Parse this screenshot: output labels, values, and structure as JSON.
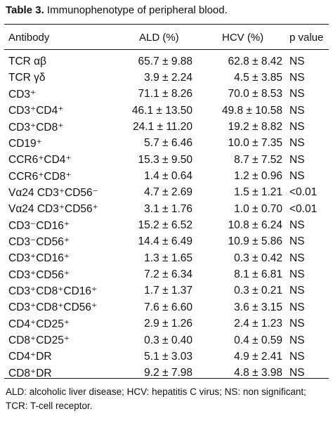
{
  "caption": {
    "label": "Table 3.",
    "title": "Immunophenotype of peripheral blood."
  },
  "header": {
    "antibody": "Antibody",
    "ald": "ALD (%)",
    "hcv": "HCV (%)",
    "p": "p value"
  },
  "rows": [
    {
      "antibody": "TCR αβ",
      "ald": "65.7 ± 9.88",
      "hcv": "62.8 ± 8.42",
      "p": "NS"
    },
    {
      "antibody": "TCR γδ",
      "ald": "3.9 ± 2.24",
      "hcv": "4.5 ± 3.85",
      "p": "NS"
    },
    {
      "antibody": "CD3⁺",
      "ald": "71.1 ± 8.26",
      "hcv": "70.0 ± 8.53",
      "p": "NS"
    },
    {
      "antibody": "CD3⁺CD4⁺",
      "ald": "46.1 ± 13.50",
      "hcv": "49.8 ± 10.58",
      "p": "NS"
    },
    {
      "antibody": "CD3⁺CD8⁺",
      "ald": "24.1 ± 11.20",
      "hcv": "19.2 ± 8.82",
      "p": "NS"
    },
    {
      "antibody": "CD19⁺",
      "ald": "5.7 ± 6.46",
      "hcv": "10.0 ± 7.35",
      "p": "NS"
    },
    {
      "antibody": "CCR6⁺CD4⁺",
      "ald": "15.3 ± 9.50",
      "hcv": "8.7 ± 7.52",
      "p": "NS"
    },
    {
      "antibody": "CCR6⁺CD8⁺",
      "ald": "1.4 ± 0.64",
      "hcv": "1.2 ± 0.96",
      "p": "NS"
    },
    {
      "antibody": "Vα24 CD3⁺CD56⁻",
      "ald": "4.7 ± 2.69",
      "hcv": "1.5 ± 1.21",
      "p": "<0.01"
    },
    {
      "antibody": "Vα24 CD3⁺CD56⁺",
      "ald": "3.1 ± 1.76",
      "hcv": "1.0 ± 0.70",
      "p": "<0.01"
    },
    {
      "antibody": "CD3⁻CD16⁺",
      "ald": "15.2 ± 6.52",
      "hcv": "10.8 ± 6.24",
      "p": "NS"
    },
    {
      "antibody": "CD3⁻CD56⁺",
      "ald": "14.4 ± 6.49",
      "hcv": "10.9 ± 5.86",
      "p": "NS"
    },
    {
      "antibody": "CD3⁺CD16⁺",
      "ald": "1.3 ± 1.65",
      "hcv": "0.3 ± 0.42",
      "p": "NS"
    },
    {
      "antibody": "CD3⁺CD56⁺",
      "ald": "7.2 ± 6.34",
      "hcv": "8.1 ± 6.81",
      "p": "NS"
    },
    {
      "antibody": "CD3⁺CD8⁺CD16⁺",
      "ald": "1.7 ± 1.37",
      "hcv": "0.3 ± 0.21",
      "p": "NS"
    },
    {
      "antibody": "CD3⁺CD8⁺CD56⁺",
      "ald": "7.6 ± 6.60",
      "hcv": "3.6 ± 3.15",
      "p": "NS"
    },
    {
      "antibody": "CD4⁺CD25⁺",
      "ald": "2.9 ± 1.26",
      "hcv": "2.4 ± 1.23",
      "p": "NS"
    },
    {
      "antibody": "CD8⁺CD25⁺",
      "ald": "0.3 ± 0.40",
      "hcv": "0.4 ± 0.59",
      "p": "NS"
    },
    {
      "antibody": "CD4⁺DR",
      "ald": "5.1 ± 3.03",
      "hcv": "4.9 ± 2.41",
      "p": "NS"
    },
    {
      "antibody": "CD8⁺DR",
      "ald": "9.2 ± 7.98",
      "hcv": "4.8 ± 3.98",
      "p": "NS"
    }
  ],
  "footnote": "ALD: alcoholic liver disease; HCV: hepatitis C virus; NS: non significant; TCR: T-cell receptor."
}
